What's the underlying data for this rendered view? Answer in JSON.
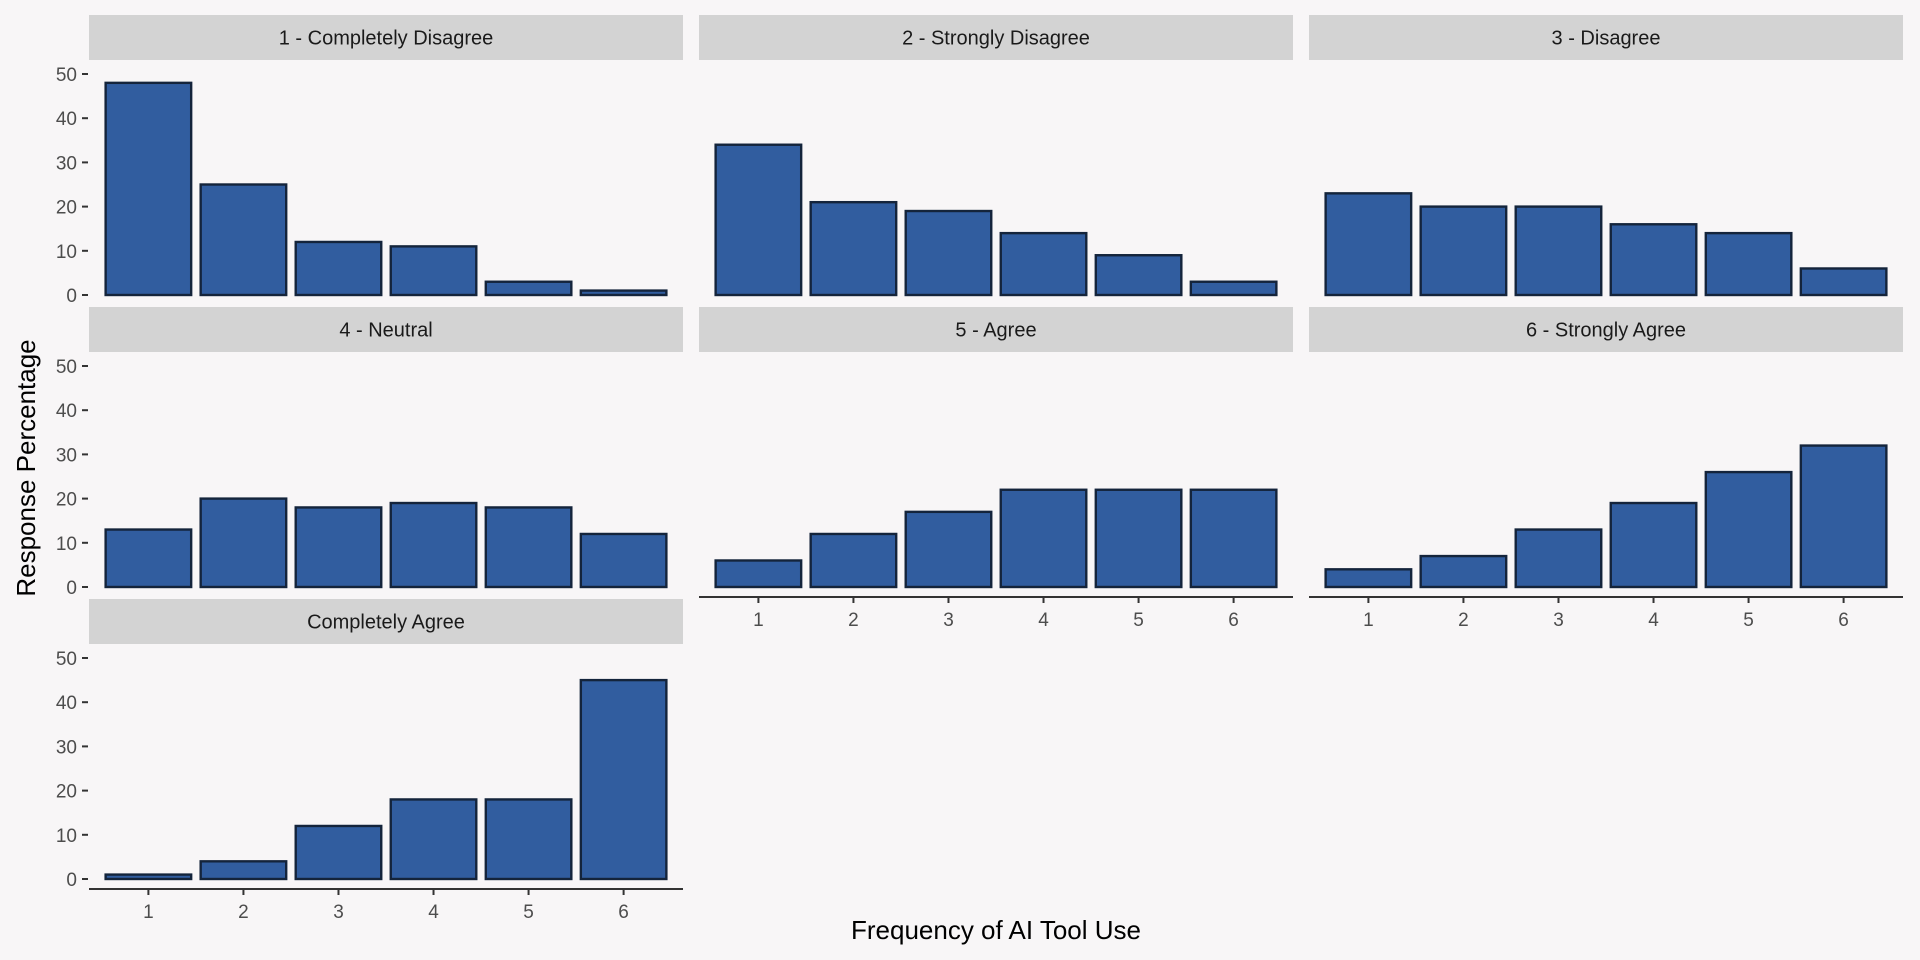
{
  "chart_data": {
    "type": "bar",
    "layout": "faceted",
    "xlabel": "Frequency of AI Tool Use",
    "ylabel": "Response Percentage",
    "categories": [
      "1",
      "2",
      "3",
      "4",
      "5",
      "6"
    ],
    "ylim": [
      0,
      50
    ],
    "yticks": [
      0,
      10,
      20,
      30,
      40,
      50
    ],
    "grid": false,
    "legend": "none",
    "bar_color": "#315d9f",
    "bar_border_color": "#14243b",
    "strip_color": "#d3d3d3",
    "background_color": "#f8f6f7",
    "facets": [
      {
        "title": "1 - Completely Disagree",
        "values": [
          48,
          25,
          12,
          11,
          3,
          1
        ]
      },
      {
        "title": "2 - Strongly Disagree",
        "values": [
          34,
          21,
          19,
          14,
          9,
          3
        ]
      },
      {
        "title": "3 - Disagree",
        "values": [
          23,
          20,
          20,
          16,
          14,
          6
        ]
      },
      {
        "title": "4 - Neutral",
        "values": [
          13,
          20,
          18,
          19,
          18,
          12
        ]
      },
      {
        "title": "5 - Agree",
        "values": [
          6,
          12,
          17,
          22,
          22,
          22
        ]
      },
      {
        "title": "6 - Strongly Agree",
        "values": [
          4,
          7,
          13,
          19,
          26,
          32
        ]
      },
      {
        "title": "Completely Agree",
        "values": [
          1,
          4,
          12,
          18,
          18,
          45
        ]
      }
    ]
  }
}
